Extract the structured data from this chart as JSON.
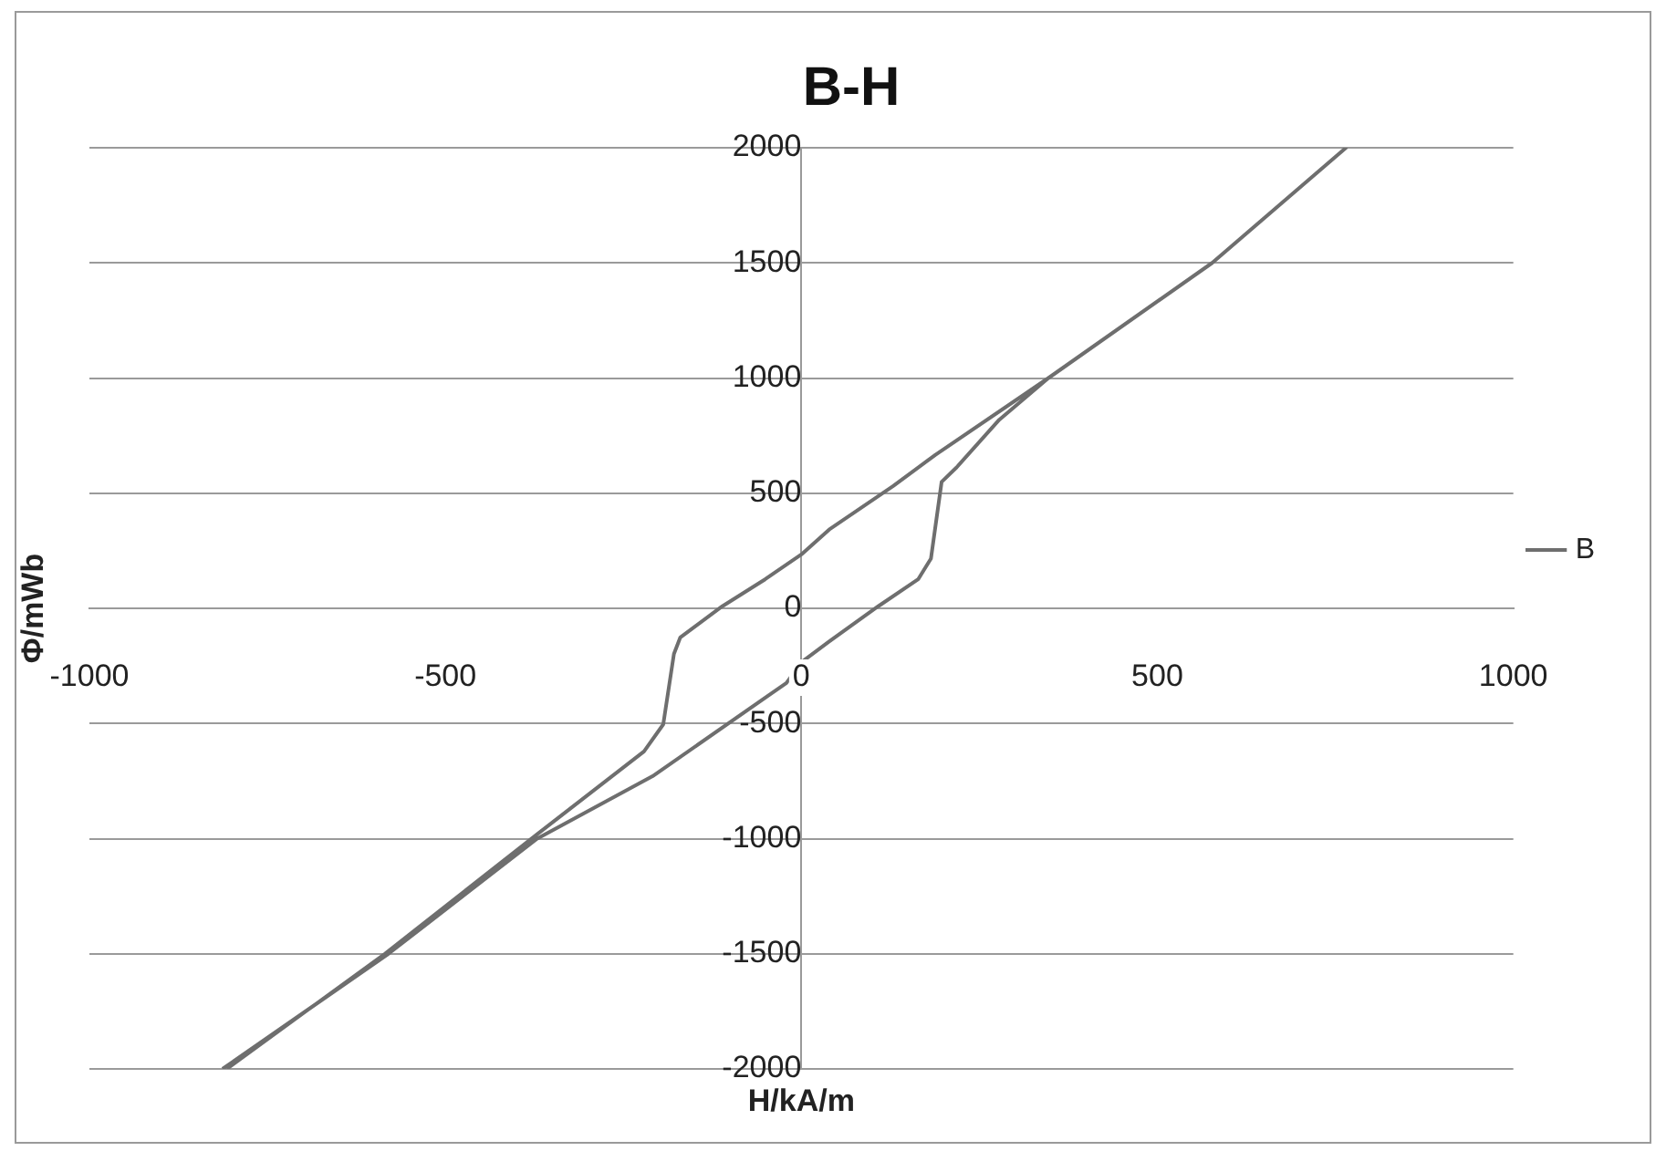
{
  "chart_data": {
    "type": "line",
    "title": "B-H",
    "xlabel": "H/kA/m",
    "ylabel": "Φ/mWb",
    "xlim": [
      -1000,
      1000
    ],
    "xticks": [
      -1000,
      -500,
      0,
      500,
      1000
    ],
    "ylim": [
      -2000,
      2000
    ],
    "yticks": [
      -2000,
      -1500,
      -1000,
      -500,
      0,
      500,
      1000,
      1500,
      2000
    ],
    "grid": "y",
    "legend": "right",
    "marker": "none",
    "line_style": "solid",
    "series": [
      {
        "name": "B",
        "color": "#6e6e6e",
        "x": [
          -813,
          -580,
          -371,
          -209,
          -21,
          0,
          39,
          108,
          164,
          182,
          197,
          218,
          278,
          347,
          577,
          765,
          577,
          347,
          188,
          129,
          39,
          0,
          -51,
          -111,
          -170,
          -179,
          -194,
          -221,
          -371,
          -585,
          -807
        ],
        "values": [
          -2000,
          -1500,
          -1000,
          -729,
          -324,
          -234,
          -144,
          9,
          126,
          216,
          549,
          612,
          819,
          1000,
          1500,
          2000,
          1500,
          1000,
          666,
          531,
          342,
          234,
          126,
          9,
          -126,
          -198,
          -504,
          -621,
          -981,
          -1500,
          -2000
        ]
      }
    ]
  }
}
